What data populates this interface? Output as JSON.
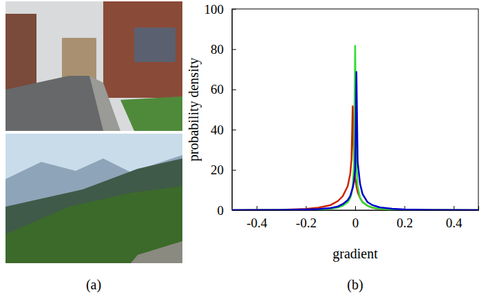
{
  "captions": [
    "(a)",
    "(b)"
  ],
  "chart_data": {
    "type": "line",
    "x_label": "gradient",
    "y_label": "probability density",
    "xlim": [
      -0.5,
      0.5
    ],
    "xticks": [
      -0.4,
      -0.2,
      0,
      0.2,
      0.4
    ],
    "ylim": [
      0,
      100
    ],
    "yticks": [
      0,
      20,
      40,
      60,
      80,
      100
    ],
    "grid": false,
    "x": [
      -0.5,
      -0.3,
      -0.2,
      -0.15,
      -0.1,
      -0.07,
      -0.05,
      -0.03,
      -0.02,
      -0.015,
      -0.01,
      -0.005,
      0,
      0.005,
      0.01,
      0.02,
      0.03,
      0.05,
      0.07,
      0.1,
      0.15,
      0.2,
      0.3,
      0.5
    ],
    "series": [
      {
        "color": "#cc2200",
        "values": [
          0,
          0.2,
          0.6,
          1.2,
          2.5,
          4.5,
          7,
          12,
          18,
          25,
          52,
          24,
          16,
          12,
          9,
          6,
          4,
          2.2,
          1.2,
          0.6,
          0.3,
          0.15,
          0.05,
          0
        ]
      },
      {
        "color": "#33dd33",
        "values": [
          0,
          0.05,
          0.15,
          0.3,
          0.7,
          1.3,
          2.2,
          4,
          6,
          8,
          12,
          22,
          82,
          22,
          12,
          6,
          4,
          2.2,
          1.3,
          0.7,
          0.3,
          0.15,
          0.05,
          0
        ]
      },
      {
        "color": "#0000cc",
        "values": [
          0,
          0.1,
          0.3,
          0.5,
          1,
          1.8,
          3,
          5,
          7,
          9,
          11,
          14,
          20,
          69,
          24,
          13,
          8,
          4,
          2.5,
          1.4,
          0.7,
          0.35,
          0.1,
          0
        ]
      }
    ]
  }
}
